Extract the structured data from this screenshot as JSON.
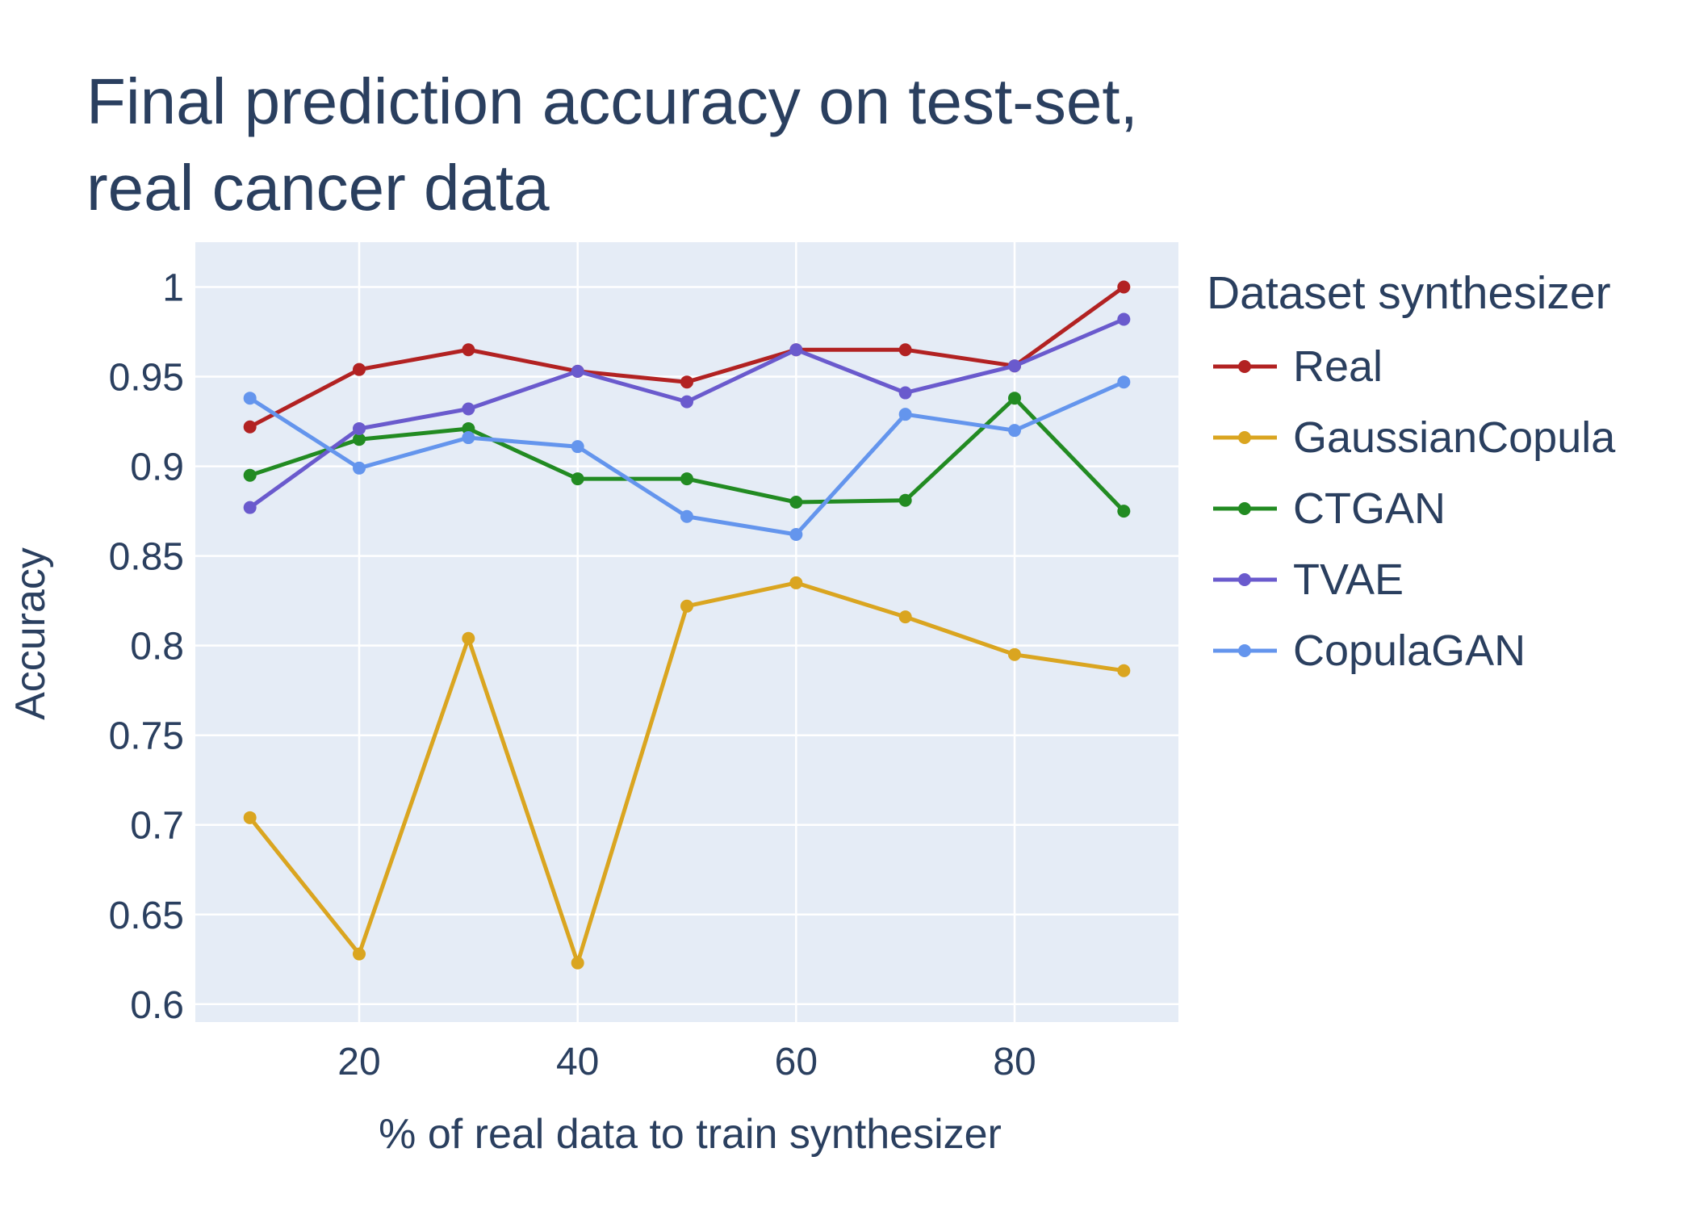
{
  "title_lines": [
    "Final prediction accuracy on test-set,",
    "real cancer data"
  ],
  "chart_data": {
    "type": "line",
    "title": "Final prediction accuracy on test-set, real cancer data",
    "xlabel": "% of real data to train synthesizer",
    "ylabel": "Accuracy",
    "xlim": [
      5,
      95
    ],
    "ylim": [
      0.59,
      1.025
    ],
    "x_ticks": [
      20,
      40,
      60,
      80
    ],
    "y_ticks": [
      0.6,
      0.65,
      0.7,
      0.75,
      0.8,
      0.85,
      0.9,
      0.95,
      1
    ],
    "y_tick_labels": [
      "0.6",
      "0.65",
      "0.7",
      "0.75",
      "0.8",
      "0.85",
      "0.9",
      "0.95",
      "1"
    ],
    "grid": true,
    "legend_title": "Dataset synthesizer",
    "legend_position": "right",
    "x": [
      10,
      20,
      30,
      40,
      50,
      60,
      70,
      80,
      90
    ],
    "series": [
      {
        "name": "Real",
        "color": "#b22222",
        "values": [
          0.922,
          0.954,
          0.965,
          0.953,
          0.947,
          0.965,
          0.965,
          0.956,
          1.0
        ]
      },
      {
        "name": "GaussianCopula",
        "color": "#daa520",
        "values": [
          0.704,
          0.628,
          0.804,
          0.623,
          0.822,
          0.835,
          0.816,
          0.795,
          0.786
        ]
      },
      {
        "name": "CTGAN",
        "color": "#228b22",
        "values": [
          0.895,
          0.915,
          0.921,
          0.893,
          0.893,
          0.88,
          0.881,
          0.938,
          0.875
        ]
      },
      {
        "name": "TVAE",
        "color": "#6a5acd",
        "values": [
          0.877,
          0.921,
          0.932,
          0.953,
          0.936,
          0.965,
          0.941,
          0.956,
          0.982
        ]
      },
      {
        "name": "CopulaGAN",
        "color": "#6495ed",
        "values": [
          0.938,
          0.899,
          0.916,
          0.911,
          0.872,
          0.862,
          0.929,
          0.92,
          0.947
        ]
      }
    ]
  }
}
